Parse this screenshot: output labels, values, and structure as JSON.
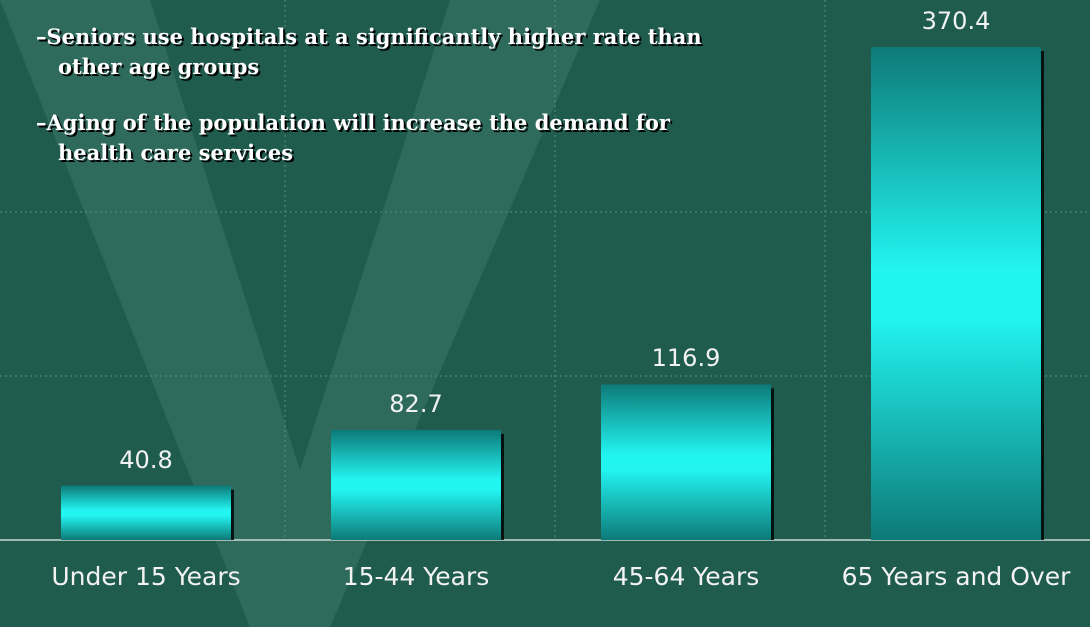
{
  "chart_data": {
    "type": "bar",
    "annotations": [
      "–Seniors use hospitals at a significantly higher rate than other age groups",
      "–Aging of the population will increase the demand for health care services"
    ],
    "categories": [
      "Under 15 Years",
      "15-44 Years",
      "45-64 Years",
      "65 Years and Over"
    ],
    "values": [
      40.8,
      82.7,
      116.9,
      370.4
    ],
    "color": "#22f4f0",
    "ylim": [
      0,
      400
    ]
  }
}
